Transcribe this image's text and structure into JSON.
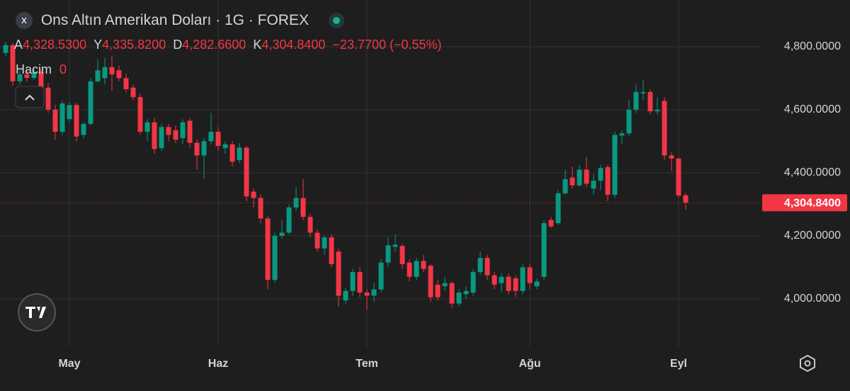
{
  "header": {
    "title": "Ons Altın Amerikan Doları · 1G · FOREX",
    "legend": [
      {
        "key": "A",
        "label": "4,328.5300"
      },
      {
        "key": "Y",
        "label": "4,335.8200"
      },
      {
        "key": "D",
        "label": "4,282.6600"
      },
      {
        "key": "K",
        "label": "4,304.8400"
      }
    ],
    "change": "−23.7700 (−0.55%)",
    "volume_key": "Hacim",
    "volume_value": "0"
  },
  "chart_data": {
    "type": "candlestick",
    "categories": [
      null,
      null,
      null,
      null,
      null,
      null,
      null,
      null,
      null,
      "May",
      null,
      null,
      null,
      null,
      null,
      null,
      null,
      null,
      null,
      null,
      null,
      null,
      null,
      null,
      null,
      null,
      null,
      null,
      null,
      null,
      "Haz",
      null,
      null,
      null,
      null,
      null,
      null,
      null,
      null,
      null,
      null,
      null,
      null,
      null,
      null,
      null,
      null,
      null,
      null,
      null,
      null,
      "Tem",
      null,
      null,
      null,
      null,
      null,
      null,
      null,
      null,
      null,
      null,
      null,
      null,
      null,
      null,
      null,
      null,
      null,
      null,
      null,
      null,
      null,
      null,
      "Ağu",
      null,
      null,
      null,
      null,
      null,
      null,
      null,
      null,
      null,
      null,
      null,
      null,
      null,
      null,
      null,
      null,
      null,
      null,
      null,
      null,
      "Eyl",
      null
    ],
    "open": [
      4780,
      4805,
      4690,
      4712,
      4701,
      4720,
      4670,
      4600,
      4530,
      4570,
      4615,
      4520,
      4555,
      4690,
      4700,
      4735,
      4725,
      4700,
      4670,
      4640,
      4530,
      4560,
      4478,
      4545,
      4535,
      4510,
      4565,
      4495,
      4455,
      4500,
      4530,
      4478,
      4490,
      4440,
      4480,
      4340,
      4320,
      4255,
      4060,
      4200,
      4210,
      4290,
      4320,
      4260,
      4210,
      4160,
      4195,
      4150,
      3995,
      4025,
      4085,
      4020,
      4010,
      4030,
      4115,
      4165,
      4168,
      4115,
      4070,
      4120,
      4105,
      4045,
      4040,
      4050,
      3985,
      4015,
      4020,
      4085,
      4130,
      4075,
      4050,
      4070,
      4065,
      4025,
      4100,
      4040,
      4070,
      4250,
      4240,
      4335,
      4385,
      4360,
      4410,
      4350,
      4375,
      4418,
      4330,
      4518,
      4525,
      4600,
      4652,
      4656,
      4595,
      4628,
      4455,
      4445,
      4328.53
    ],
    "high": [
      4815,
      4812,
      4725,
      4730,
      4735,
      4728,
      4685,
      4615,
      4628,
      4625,
      4622,
      4560,
      4700,
      4760,
      4765,
      4770,
      4740,
      4715,
      4680,
      4650,
      4570,
      4575,
      4555,
      4555,
      4550,
      4570,
      4572,
      4505,
      4510,
      4590,
      4545,
      4500,
      4500,
      4495,
      4485,
      4350,
      4330,
      4262,
      4210,
      4250,
      4300,
      4355,
      4380,
      4270,
      4220,
      4200,
      4205,
      4160,
      4035,
      4095,
      4100,
      4030,
      4050,
      4125,
      4195,
      4205,
      4175,
      4125,
      4130,
      4140,
      4110,
      4060,
      4070,
      4055,
      4030,
      4040,
      4095,
      4150,
      4140,
      4085,
      4080,
      4080,
      4075,
      4110,
      4110,
      4065,
      4250,
      4260,
      4345,
      4410,
      4420,
      4425,
      4450,
      4395,
      4425,
      4425,
      4530,
      4535,
      4630,
      4680,
      4695,
      4665,
      4640,
      4640,
      4465,
      4450,
      4335.82
    ],
    "low": [
      4770,
      4675,
      4680,
      4690,
      4695,
      4655,
      4590,
      4505,
      4520,
      4560,
      4500,
      4510,
      4550,
      4685,
      4680,
      4660,
      4690,
      4655,
      4630,
      4520,
      4500,
      4460,
      4470,
      4500,
      4495,
      4490,
      4480,
      4410,
      4380,
      4490,
      4470,
      4460,
      4420,
      4430,
      4310,
      4290,
      4240,
      4030,
      4050,
      4190,
      4205,
      4280,
      4250,
      4195,
      4150,
      4140,
      4100,
      3975,
      3985,
      4010,
      4005,
      3965,
      3990,
      4020,
      4100,
      4150,
      4095,
      4055,
      4060,
      4085,
      3990,
      3995,
      4025,
      3970,
      3975,
      4000,
      4010,
      4075,
      4060,
      4030,
      4020,
      4015,
      4005,
      4015,
      4030,
      4030,
      4060,
      4225,
      4235,
      4330,
      4350,
      4355,
      4355,
      4330,
      4345,
      4310,
      4320,
      4490,
      4515,
      4590,
      4630,
      4585,
      4585,
      4440,
      4405,
      4320,
      4282.66
    ],
    "close": [
      4805,
      4690,
      4712,
      4701,
      4720,
      4670,
      4600,
      4530,
      4620,
      4615,
      4515,
      4555,
      4690,
      4725,
      4735,
      4712,
      4700,
      4665,
      4640,
      4530,
      4560,
      4475,
      4545,
      4520,
      4505,
      4560,
      4495,
      4455,
      4500,
      4530,
      4485,
      4490,
      4435,
      4480,
      4325,
      4320,
      4255,
      4060,
      4200,
      4210,
      4290,
      4320,
      4260,
      4210,
      4160,
      4195,
      4110,
      4010,
      4025,
      4085,
      4020,
      4010,
      4030,
      4115,
      4170,
      4172,
      4110,
      4070,
      4120,
      4095,
      4005,
      4005,
      4050,
      3985,
      4020,
      4025,
      4085,
      4130,
      4075,
      4045,
      4070,
      4025,
      4025,
      4100,
      4050,
      4055,
      4240,
      4230,
      4335,
      4380,
      4360,
      4410,
      4365,
      4375,
      4415,
      4330,
      4520,
      4525,
      4600,
      4656,
      4656,
      4595,
      4600,
      4455,
      4445,
      4328,
      4304.84
    ],
    "up_color": "#089981",
    "down_color": "#f23645",
    "ylim": [
      3847,
      4948
    ],
    "yticks": [
      {
        "value": 4000,
        "label": "4,000.0000"
      },
      {
        "value": 4200,
        "label": "4,200.0000"
      },
      {
        "value": 4400,
        "label": "4,400.0000"
      },
      {
        "value": 4600,
        "label": "4,600.0000"
      },
      {
        "value": 4800,
        "label": "4,800.0000"
      }
    ],
    "grid": true,
    "last_price": {
      "value": 4304.84,
      "label": "4,304.8400"
    }
  }
}
